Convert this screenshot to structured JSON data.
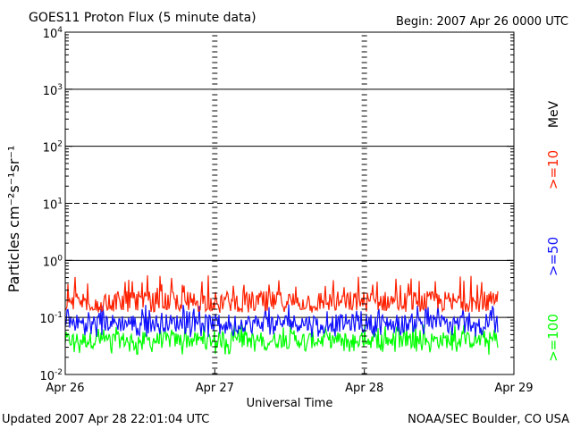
{
  "header": {
    "title": "GOES11 Proton Flux (5 minute data)",
    "begin": "Begin: 2007 Apr 26 0000 UTC"
  },
  "footer": {
    "updated": "Updated 2007 Apr 28 22:01:04 UTC",
    "credit": "NOAA/SEC Boulder, CO USA"
  },
  "legend": {
    "unit": "MeV",
    "entries": [
      {
        "label": ">=10",
        "color": "#ff2000"
      },
      {
        "label": ">=50",
        "color": "#1010ff"
      },
      {
        "label": ">=100",
        "color": "#00ff00"
      }
    ]
  },
  "chart_data": {
    "type": "line",
    "title": "GOES11 Proton Flux (5 minute data)",
    "xlabel": "Universal Time",
    "ylabel": "Particles cm⁻²s⁻¹sr⁻¹",
    "x_ticks": [
      "Apr 26",
      "Apr 27",
      "Apr 28",
      "Apr 29"
    ],
    "xlim": [
      "2007-04-26",
      "2007-04-29"
    ],
    "y_scale": "log",
    "ylim": [
      0.01,
      10000
    ],
    "y_ticks": [
      {
        "base": "10",
        "exp": "-2",
        "value": 0.01
      },
      {
        "base": "10",
        "exp": "-1",
        "value": 0.1
      },
      {
        "base": "10",
        "exp": "0",
        "value": 1
      },
      {
        "base": "10",
        "exp": "1",
        "value": 10
      },
      {
        "base": "10",
        "exp": "2",
        "value": 100
      },
      {
        "base": "10",
        "exp": "3",
        "value": 1000
      },
      {
        "base": "10",
        "exp": "4",
        "value": 10000
      }
    ],
    "threshold_lines": [
      {
        "value": 0.1,
        "style": "solid"
      },
      {
        "value": 1,
        "style": "solid"
      },
      {
        "value": 10,
        "style": "dashed"
      },
      {
        "value": 100,
        "style": "solid"
      },
      {
        "value": 1000,
        "style": "solid"
      }
    ],
    "series": [
      {
        "name": ">=10 MeV",
        "color": "#ff2000",
        "typical": 0.19,
        "min": 0.12,
        "max": 0.55
      },
      {
        "name": ">=50 MeV",
        "color": "#1010ff",
        "typical": 0.08,
        "min": 0.045,
        "max": 0.17
      },
      {
        "name": ">=100 MeV",
        "color": "#00ff00",
        "typical": 0.04,
        "min": 0.022,
        "max": 0.075
      }
    ],
    "end_fraction": 0.965,
    "grid": "partial"
  }
}
